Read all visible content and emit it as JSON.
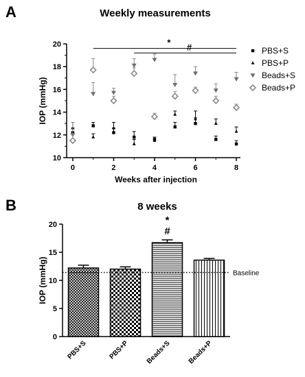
{
  "panel_a_letter": "A",
  "panel_b_letter": "B",
  "chart_data": [
    {
      "type": "scatter",
      "title": "Weekly measurements",
      "xlabel": "Weeks after injection",
      "ylabel": "IOP (mmHg)",
      "xlim": [
        -0.3,
        8.2
      ],
      "ylim": [
        10,
        20
      ],
      "xticks": [
        "0",
        "2",
        "4",
        "6",
        "8"
      ],
      "yticks": [
        "10",
        "12",
        "14",
        "16",
        "18",
        "20"
      ],
      "legend_position": "right",
      "series": [
        {
          "name": "PBS+S",
          "marker": "square",
          "color": "#000000",
          "x": [
            0,
            1,
            2,
            3,
            4,
            5,
            6,
            7,
            8
          ],
          "y": [
            12.2,
            12.8,
            12.2,
            11.8,
            11.6,
            12.7,
            13.0,
            11.6,
            11.2
          ],
          "err": [
            0.4,
            0.3,
            0.4,
            0.5,
            0.2,
            0.4,
            0.5,
            0.3,
            0.3
          ]
        },
        {
          "name": "PBS+P",
          "marker": "triangle-up",
          "color": "#000000",
          "x": [
            0,
            1,
            2,
            3,
            4,
            5,
            6,
            7,
            8
          ],
          "y": [
            12.6,
            11.8,
            12.6,
            11.2,
            11.5,
            13.8,
            13.4,
            13.0,
            12.3
          ],
          "err": [
            0.5,
            0.3,
            0.5,
            0.4,
            0.3,
            0.3,
            0.7,
            0.4,
            0.4
          ]
        },
        {
          "name": "Beads+S",
          "marker": "triangle-down",
          "color": "#6e6e6e",
          "x": [
            0,
            1,
            2,
            3,
            4,
            5,
            6,
            7,
            8
          ],
          "y": [
            12.0,
            15.6,
            15.7,
            18.1,
            18.6,
            16.4,
            17.4,
            15.9,
            16.9
          ],
          "err": [
            1.1,
            1.0,
            0.4,
            0.6,
            0.5,
            0.9,
            0.6,
            0.6,
            0.6
          ]
        },
        {
          "name": "Beads+P",
          "marker": "diamond",
          "color": "#8a8a8a",
          "x": [
            0,
            1,
            2,
            3,
            4,
            5,
            6,
            7,
            8
          ],
          "y": [
            11.5,
            17.7,
            15.0,
            17.4,
            13.6,
            15.4,
            15.9,
            15.0,
            14.4
          ],
          "err": [
            0.5,
            1.0,
            0.4,
            0.5,
            0.3,
            0.4,
            0.3,
            0.4,
            0.3
          ]
        }
      ],
      "annotations": [
        {
          "label": "*",
          "x_start": 1,
          "x_end": 8,
          "y": 19.6
        },
        {
          "label": "#",
          "x_start": 3,
          "x_end": 8,
          "y": 19.2
        }
      ]
    },
    {
      "type": "bar",
      "title": "8 weeks",
      "xlabel": "",
      "ylabel": "IOP (mmHg)",
      "ylim": [
        0,
        20
      ],
      "yticks": [
        "0",
        "5",
        "10",
        "15",
        "20"
      ],
      "categories": [
        "PBS+S",
        "PBS+P",
        "Beads+S",
        "Beads+P"
      ],
      "values": [
        12.2,
        12.0,
        16.7,
        13.6
      ],
      "err": [
        0.5,
        0.4,
        0.5,
        0.3
      ],
      "patterns": [
        "diagonal-crosshatch",
        "checker",
        "horizontal-lines",
        "vertical-lines"
      ],
      "baseline": {
        "value": 11.4,
        "label": "Baseline"
      },
      "significance": [
        {
          "category": "Beads+S",
          "labels": [
            "*",
            "#"
          ]
        }
      ]
    }
  ]
}
